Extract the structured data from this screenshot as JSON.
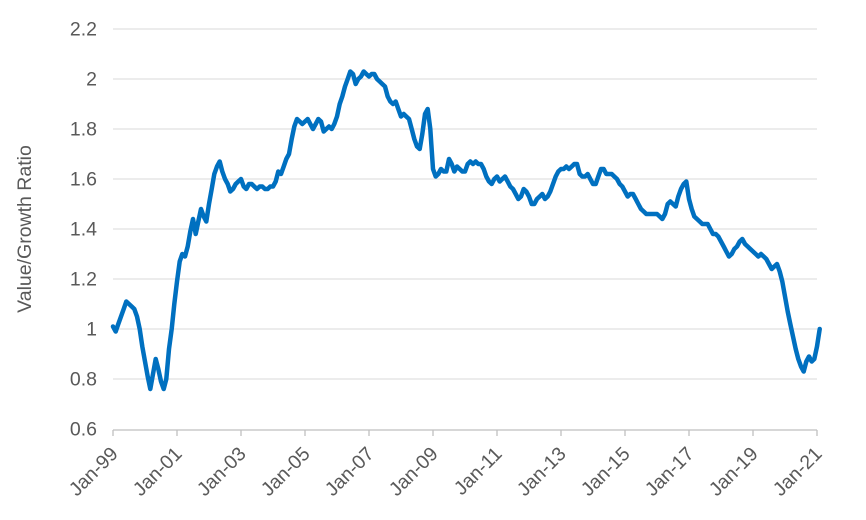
{
  "chart_data": {
    "type": "line",
    "title": "",
    "xlabel": "",
    "ylabel": "Value/Growth Ratio",
    "legend": "none",
    "grid": true,
    "x_start": "Jan-1999",
    "x_freq": "monthly",
    "x_tick_every_months": 24,
    "x_tick_labels": [
      "Jan-99",
      "Jan-01",
      "Jan-03",
      "Jan-05",
      "Jan-07",
      "Jan-09",
      "Jan-11",
      "Jan-13",
      "Jan-15",
      "Jan-17",
      "Jan-19",
      "Jan-21"
    ],
    "ylim": [
      0.6,
      2.2
    ],
    "ytick_step": 0.2,
    "ytick_labels": [
      "0.6",
      "0.8",
      "1",
      "1.2",
      "1.4",
      "1.6",
      "1.8",
      "2",
      "2.2"
    ],
    "series": [
      {
        "name": "Value/Growth Ratio",
        "color": "#0070C0",
        "values": [
          1.01,
          0.99,
          1.02,
          1.05,
          1.08,
          1.11,
          1.1,
          1.09,
          1.08,
          1.05,
          1.0,
          0.93,
          0.87,
          0.81,
          0.76,
          0.82,
          0.88,
          0.84,
          0.79,
          0.76,
          0.8,
          0.92,
          1.0,
          1.1,
          1.19,
          1.27,
          1.3,
          1.29,
          1.33,
          1.39,
          1.44,
          1.38,
          1.43,
          1.48,
          1.45,
          1.43,
          1.5,
          1.56,
          1.62,
          1.65,
          1.67,
          1.63,
          1.6,
          1.58,
          1.55,
          1.56,
          1.58,
          1.59,
          1.6,
          1.57,
          1.56,
          1.58,
          1.58,
          1.57,
          1.56,
          1.57,
          1.57,
          1.56,
          1.56,
          1.57,
          1.57,
          1.59,
          1.63,
          1.62,
          1.65,
          1.68,
          1.7,
          1.76,
          1.81,
          1.84,
          1.83,
          1.82,
          1.83,
          1.84,
          1.82,
          1.8,
          1.82,
          1.84,
          1.83,
          1.79,
          1.8,
          1.81,
          1.8,
          1.82,
          1.85,
          1.9,
          1.93,
          1.97,
          2.0,
          2.03,
          2.02,
          1.98,
          2.0,
          2.01,
          2.03,
          2.02,
          2.01,
          2.02,
          2.02,
          2.0,
          1.99,
          1.98,
          1.97,
          1.93,
          1.91,
          1.9,
          1.91,
          1.88,
          1.85,
          1.86,
          1.85,
          1.84,
          1.8,
          1.76,
          1.73,
          1.72,
          1.78,
          1.86,
          1.88,
          1.8,
          1.64,
          1.61,
          1.62,
          1.64,
          1.63,
          1.63,
          1.68,
          1.66,
          1.63,
          1.65,
          1.64,
          1.63,
          1.63,
          1.66,
          1.67,
          1.66,
          1.67,
          1.66,
          1.66,
          1.64,
          1.61,
          1.59,
          1.58,
          1.6,
          1.61,
          1.59,
          1.6,
          1.61,
          1.59,
          1.57,
          1.56,
          1.54,
          1.52,
          1.53,
          1.56,
          1.55,
          1.53,
          1.5,
          1.5,
          1.52,
          1.53,
          1.54,
          1.52,
          1.53,
          1.55,
          1.58,
          1.61,
          1.63,
          1.64,
          1.64,
          1.65,
          1.64,
          1.65,
          1.66,
          1.66,
          1.62,
          1.61,
          1.61,
          1.62,
          1.6,
          1.58,
          1.58,
          1.61,
          1.64,
          1.64,
          1.62,
          1.62,
          1.62,
          1.61,
          1.6,
          1.58,
          1.57,
          1.55,
          1.53,
          1.54,
          1.54,
          1.52,
          1.5,
          1.48,
          1.47,
          1.46,
          1.46,
          1.46,
          1.46,
          1.46,
          1.45,
          1.44,
          1.46,
          1.5,
          1.51,
          1.5,
          1.49,
          1.53,
          1.56,
          1.58,
          1.59,
          1.52,
          1.48,
          1.45,
          1.44,
          1.43,
          1.42,
          1.42,
          1.42,
          1.4,
          1.38,
          1.38,
          1.37,
          1.35,
          1.33,
          1.31,
          1.29,
          1.3,
          1.32,
          1.33,
          1.35,
          1.36,
          1.34,
          1.33,
          1.32,
          1.31,
          1.3,
          1.29,
          1.3,
          1.29,
          1.28,
          1.26,
          1.24,
          1.25,
          1.26,
          1.23,
          1.19,
          1.13,
          1.07,
          1.02,
          0.97,
          0.92,
          0.88,
          0.85,
          0.83,
          0.87,
          0.89,
          0.87,
          0.88,
          0.93,
          1.0
        ]
      }
    ]
  },
  "colors": {
    "line": "#0070C0",
    "gridline": "#D9D9D9",
    "axis_line": "#BFBFBF",
    "tick_label": "#595959",
    "axis_title": "#595959",
    "background": "#FFFFFF"
  }
}
